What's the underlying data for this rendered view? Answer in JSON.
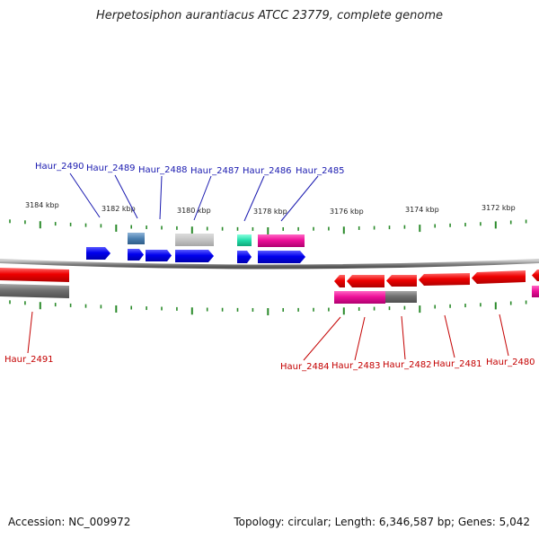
{
  "title": "Herpetosiphon aurantiacus ATCC 23779, complete genome",
  "footer": {
    "accession": "Accession: NC_009972",
    "topology": "Topology: circular; Length: 6,346,587 bp; Genes: 5,042"
  },
  "colors": {
    "forward_gene": "#0000ee",
    "reverse_gene": "#ee0000",
    "forward_label": "#1a1ab0",
    "reverse_label": "#c40000",
    "tick": "#2a8a2a",
    "backbone": "#888888",
    "rna_pink": "#ee1199",
    "grey_feature": "#707070",
    "light_grey_feature": "#c0c0c0",
    "teal_feature": "#22ddaa",
    "steelblue_feature": "#4a7fb0"
  },
  "kbp_ticks": [
    "3184 kbp",
    "3182 kbp",
    "3180 kbp",
    "3178 kbp",
    "3176 kbp",
    "3174 kbp",
    "3172 kbp"
  ],
  "forward_labels": [
    "Haur_2490",
    "Haur_2489",
    "Haur_2488",
    "Haur_2487",
    "Haur_2486",
    "Haur_2485"
  ],
  "reverse_labels": [
    "Haur_2491",
    "Haur_2484",
    "Haur_2483",
    "Haur_2482",
    "Haur_2481",
    "Haur_2480"
  ]
}
